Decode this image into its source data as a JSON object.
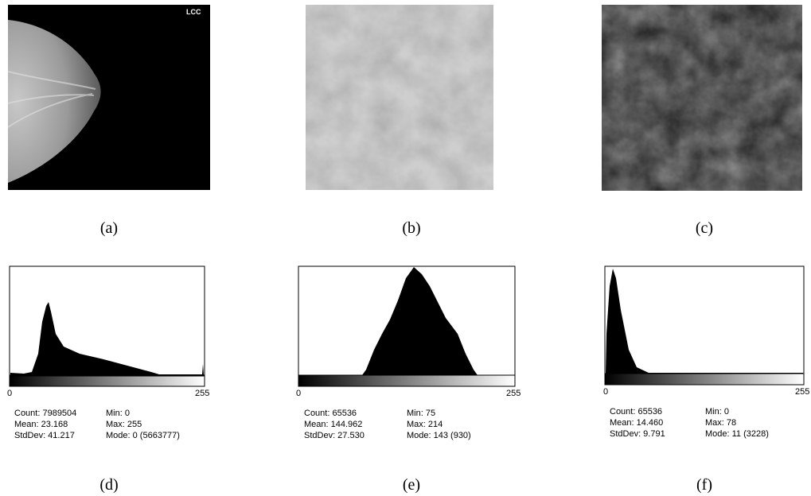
{
  "panels": [
    {
      "label": "(a)",
      "tag": "LCC"
    },
    {
      "label": "(b)"
    },
    {
      "label": "(c)"
    }
  ],
  "histograms": [
    {
      "label": "(d)",
      "axis_min": "0",
      "axis_max": "255",
      "stats": [
        "Count: 7989504",
        "Mean: 23.168",
        "StdDev: 41.217",
        "Min: 0",
        "Max: 255",
        "Mode: 0 (5663777)"
      ]
    },
    {
      "label": "(e)",
      "axis_min": "0",
      "axis_max": "255",
      "stats": [
        "Count: 65536",
        "Mean: 144.962",
        "StdDev: 27.530",
        "Min: 75",
        "Max: 214",
        "Mode: 143 (930)"
      ]
    },
    {
      "label": "(f)",
      "axis_min": "0",
      "axis_max": "255",
      "stats": [
        "Count: 65536",
        "Mean: 14.460",
        "StdDev: 9.791",
        "Min: 0",
        "Max: 78",
        "Mode: 11 (3228)"
      ]
    }
  ]
}
